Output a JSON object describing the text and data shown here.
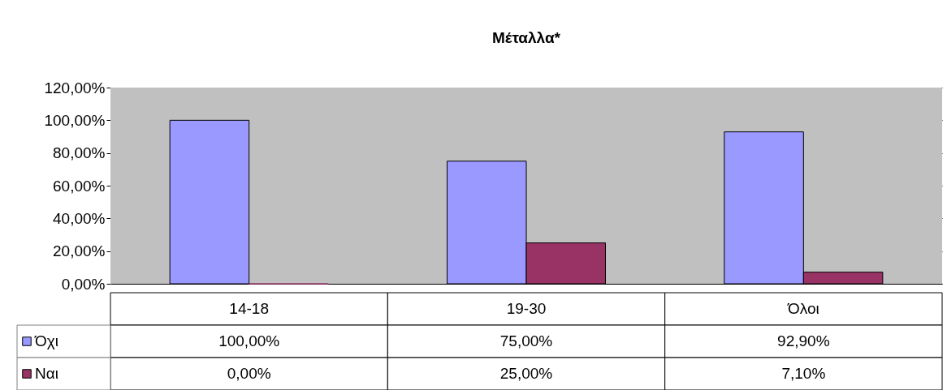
{
  "chart_data": {
    "type": "bar",
    "title": "Μέταλλα*",
    "categories": [
      "14-18",
      "19-30",
      "Όλοι"
    ],
    "series": [
      {
        "name": "Όχι",
        "color": "#9999ff",
        "values": [
          100,
          75,
          92.9
        ],
        "value_labels": [
          "100,00%",
          "75,00%",
          "92,90%"
        ]
      },
      {
        "name": "Ναι",
        "color": "#993366",
        "values": [
          0,
          25,
          7.1
        ],
        "value_labels": [
          "0,00%",
          "25,00%",
          "7,10%"
        ]
      }
    ],
    "ylim": [
      0,
      120
    ],
    "yticks": [
      {
        "value": 0,
        "label": "0,00%"
      },
      {
        "value": 20,
        "label": "20,00%"
      },
      {
        "value": 40,
        "label": "40,00%"
      },
      {
        "value": 60,
        "label": "60,00%"
      },
      {
        "value": 80,
        "label": "80,00%"
      },
      {
        "value": 100,
        "label": "100,00%"
      },
      {
        "value": 120,
        "label": "120,00%"
      }
    ],
    "grid": "y",
    "legend": "bottom left"
  }
}
